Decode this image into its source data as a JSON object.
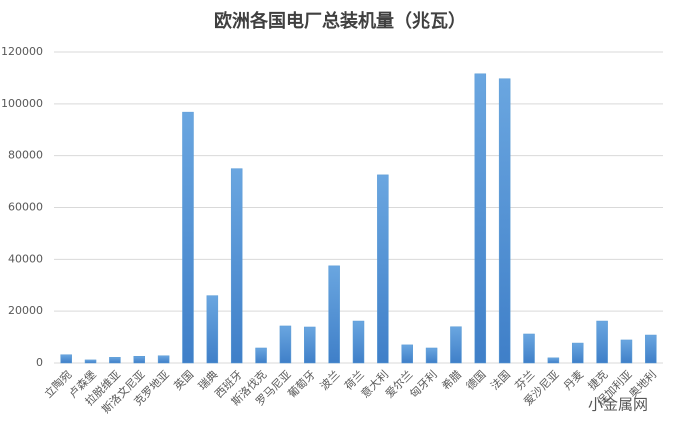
{
  "chart_data": {
    "type": "bar",
    "title": "欧洲各国电厂总装机量（兆瓦）",
    "categories": [
      "立陶宛",
      "卢森堡",
      "拉脱维亚",
      "斯洛文尼亚",
      "克罗地亚",
      "英国",
      "瑞典",
      "西班牙",
      "斯洛伐克",
      "罗马尼亚",
      "葡萄牙",
      "波兰",
      "荷兰",
      "意大利",
      "爱尔兰",
      "匈牙利",
      "希腊",
      "德国",
      "法国",
      "芬兰",
      "爱沙尼亚",
      "丹麦",
      "捷克",
      "保加利亚",
      "奥地利"
    ],
    "values": [
      3200,
      1200,
      2200,
      2600,
      2800,
      96800,
      26000,
      75000,
      5800,
      14300,
      13900,
      37500,
      16200,
      72600,
      7000,
      5800,
      14000,
      111600,
      109700,
      11200,
      2000,
      7700,
      16200,
      8900,
      10800
    ],
    "color": "#5b9bd5",
    "ylim": [
      0,
      120000
    ],
    "yticks": [
      0,
      20000,
      40000,
      60000,
      80000,
      100000,
      120000
    ],
    "grid": true,
    "watermark": "小金属网"
  }
}
